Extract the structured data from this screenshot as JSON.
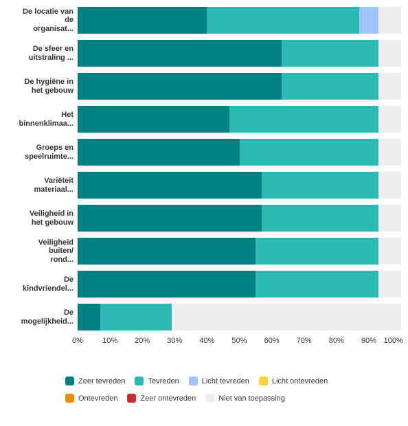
{
  "chart": {
    "type": "stacked-bar-horizontal",
    "background_color": "#ffffff",
    "row_background": "#eeeeee",
    "label_font_size": 11,
    "axis_font_size": 11,
    "categories": [
      "De locatie van\nde\norganisat...",
      "De sfeer en\nuitstraling ...",
      "De hygiëne in\nhet gebouw",
      "Het\nbinnenklimaa...",
      "Groeps en\nspeelruimte...",
      "Variëteit\nmateriaal...",
      "Veiligheid in\nhet gebouw",
      "Veiligheid\nbuiten/\nrond...",
      "De\nkindvriendel...",
      "De\nmogelijkheid..."
    ],
    "series": [
      {
        "key": "zeer_tevreden",
        "label": "Zeer tevreden",
        "color": "#008080"
      },
      {
        "key": "tevreden",
        "label": "Tevreden",
        "color": "#2db8b4"
      },
      {
        "key": "licht_tevreden",
        "label": "Licht tevreden",
        "color": "#a0c4ff"
      },
      {
        "key": "licht_ontevreden",
        "label": "Licht ontevreden",
        "color": "#ffd43b"
      },
      {
        "key": "ontevreden",
        "label": "Ontevreden",
        "color": "#f08c00"
      },
      {
        "key": "zeer_ontevreden",
        "label": "Zeer ontevreden",
        "color": "#c92a2a"
      },
      {
        "key": "nvt",
        "label": "Niet van toepassing",
        "color": "#eeeeee"
      }
    ],
    "values": [
      [
        40,
        47,
        6,
        0,
        0,
        0,
        7
      ],
      [
        63,
        30,
        0,
        0,
        0,
        0,
        7
      ],
      [
        63,
        30,
        0,
        0,
        0,
        0,
        7
      ],
      [
        47,
        46,
        0,
        0,
        0,
        0,
        7
      ],
      [
        50,
        43,
        0,
        0,
        0,
        0,
        7
      ],
      [
        57,
        36,
        0,
        0,
        0,
        0,
        7
      ],
      [
        57,
        36,
        0,
        0,
        0,
        0,
        7
      ],
      [
        55,
        38,
        0,
        0,
        0,
        0,
        7
      ],
      [
        55,
        38,
        0,
        0,
        0,
        0,
        7
      ],
      [
        7,
        22,
        0,
        0,
        0,
        0,
        71
      ]
    ],
    "xlim": [
      0,
      100
    ],
    "xticks": [
      0,
      10,
      20,
      30,
      40,
      50,
      60,
      70,
      80,
      90,
      100
    ],
    "xtick_suffix": "%"
  }
}
